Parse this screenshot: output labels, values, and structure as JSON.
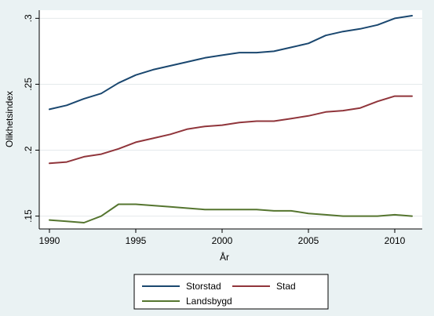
{
  "chart_data": {
    "type": "line",
    "title": "",
    "xlabel": "År",
    "ylabel": "Olikhetsindex",
    "x": [
      1990,
      1991,
      1992,
      1993,
      1994,
      1995,
      1996,
      1997,
      1998,
      1999,
      2000,
      2001,
      2002,
      2003,
      2004,
      2005,
      2006,
      2007,
      2008,
      2009,
      2010,
      2011
    ],
    "xlim": [
      1990,
      2011
    ],
    "ylim": [
      0.145,
      0.302
    ],
    "xticks": [
      1990,
      1995,
      2000,
      2005,
      2010
    ],
    "xtick_labels": [
      "1990",
      "1995",
      "2000",
      "2005",
      "2010"
    ],
    "yticks": [
      0.15,
      0.2,
      0.25,
      0.3
    ],
    "ytick_labels": [
      ".15",
      ".2",
      ".25",
      ".3"
    ],
    "grid": "horizontal",
    "legend_position": "bottom",
    "series": [
      {
        "name": "Storstad",
        "color": "#1a476f",
        "values": [
          0.231,
          0.234,
          0.239,
          0.243,
          0.251,
          0.257,
          0.261,
          0.264,
          0.267,
          0.27,
          0.272,
          0.274,
          0.274,
          0.275,
          0.278,
          0.281,
          0.287,
          0.29,
          0.292,
          0.295,
          0.3,
          0.302
        ]
      },
      {
        "name": "Stad",
        "color": "#90353b",
        "values": [
          0.19,
          0.191,
          0.195,
          0.197,
          0.201,
          0.206,
          0.209,
          0.212,
          0.216,
          0.218,
          0.219,
          0.221,
          0.222,
          0.222,
          0.224,
          0.226,
          0.229,
          0.23,
          0.232,
          0.237,
          0.241,
          0.241
        ]
      },
      {
        "name": "Landsbygd",
        "color": "#55752f",
        "values": [
          0.147,
          0.146,
          0.145,
          0.15,
          0.159,
          0.159,
          0.158,
          0.157,
          0.156,
          0.155,
          0.155,
          0.155,
          0.155,
          0.154,
          0.154,
          0.152,
          0.151,
          0.15,
          0.15,
          0.15,
          0.151,
          0.15
        ]
      }
    ]
  }
}
